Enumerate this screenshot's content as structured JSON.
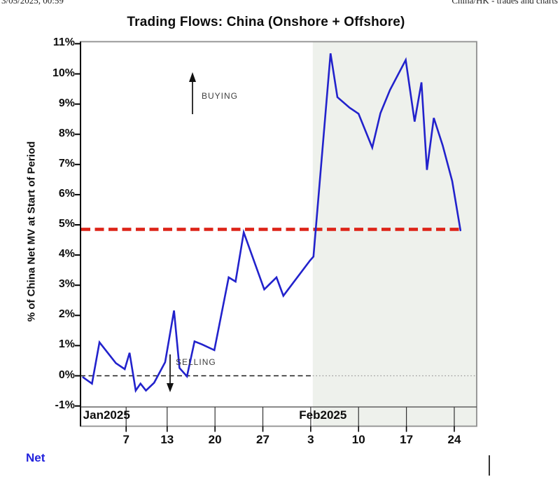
{
  "page_header": {
    "left": "3/05/2025, 00:59",
    "right": "China/HK - trades and charts"
  },
  "chart_data": {
    "type": "line",
    "title": "Trading Flows: China (Onshore + Offshore)",
    "ylabel": "% of China Net MV at Start of Period",
    "ylim": [
      -1,
      11
    ],
    "y_ticks": [
      "11%",
      "10%",
      "9%",
      "8%",
      "7%",
      "6%",
      "5%",
      "4%",
      "3%",
      "2%",
      "1%",
      "0%",
      "-1%"
    ],
    "y_tick_values": [
      11,
      10,
      9,
      8,
      7,
      6,
      5,
      4,
      3,
      2,
      1,
      0,
      -1
    ],
    "x_unit": "calendar day of 2025 (Jan 1 = 1)",
    "x_ticks": [
      {
        "day": 7,
        "label": "7"
      },
      {
        "day": 13,
        "label": "13"
      },
      {
        "day": 20,
        "label": "20"
      },
      {
        "day": 27,
        "label": "27"
      },
      {
        "day": 34,
        "label": "3"
      },
      {
        "day": 41,
        "label": "10"
      },
      {
        "day": 48,
        "label": "17"
      },
      {
        "day": 55,
        "label": "24"
      }
    ],
    "months": [
      {
        "label": "Jan2025",
        "label_day": 0.7
      },
      {
        "label": "Feb2025",
        "label_day": 32.3
      }
    ],
    "series": [
      {
        "name": "Net",
        "color": "#2222cc",
        "points": [
          [
            0.7,
            -0.05
          ],
          [
            2,
            -0.26
          ],
          [
            3.1,
            1.11
          ],
          [
            5.5,
            0.42
          ],
          [
            6.8,
            0.22
          ],
          [
            7.5,
            0.76
          ],
          [
            8.4,
            -0.49
          ],
          [
            9.1,
            -0.26
          ],
          [
            9.9,
            -0.49
          ],
          [
            11.1,
            -0.23
          ],
          [
            12.7,
            0.45
          ],
          [
            14,
            2.16
          ],
          [
            14.8,
            0.26
          ],
          [
            15.9,
            -0.02
          ],
          [
            17,
            1.14
          ],
          [
            18.1,
            1.04
          ],
          [
            19.9,
            0.85
          ],
          [
            22,
            3.26
          ],
          [
            23,
            3.12
          ],
          [
            24.2,
            4.75
          ],
          [
            27.2,
            2.86
          ],
          [
            29,
            3.26
          ],
          [
            30,
            2.65
          ],
          [
            33.9,
            3.82
          ],
          [
            34.4,
            3.95
          ],
          [
            36.9,
            10.68
          ],
          [
            37.9,
            9.23
          ],
          [
            39.7,
            8.88
          ],
          [
            41,
            8.68
          ],
          [
            43,
            7.56
          ],
          [
            44.2,
            8.7
          ],
          [
            45.6,
            9.47
          ],
          [
            47.9,
            10.46
          ],
          [
            49.2,
            8.42
          ],
          [
            50.2,
            9.72
          ],
          [
            51,
            6.82
          ],
          [
            52,
            8.54
          ],
          [
            53.3,
            7.63
          ],
          [
            54.7,
            6.45
          ],
          [
            55.9,
            4.82
          ]
        ]
      }
    ],
    "reference_lines": {
      "red_dashed_value": 4.85,
      "zero_dashed_value": 0
    },
    "shade": {
      "start_day": 34.3
    },
    "annotations": [
      {
        "label": "BUYING",
        "direction": "up"
      },
      {
        "label": "SELLING",
        "direction": "down"
      }
    ],
    "legend": {
      "label": "Net",
      "color": "#2222dd"
    }
  },
  "colors": {
    "line": "#2222cc",
    "red_line": "#dd2418",
    "shade": "#eef1ec",
    "frame": "#8f8f8f",
    "axis": "#000000"
  }
}
